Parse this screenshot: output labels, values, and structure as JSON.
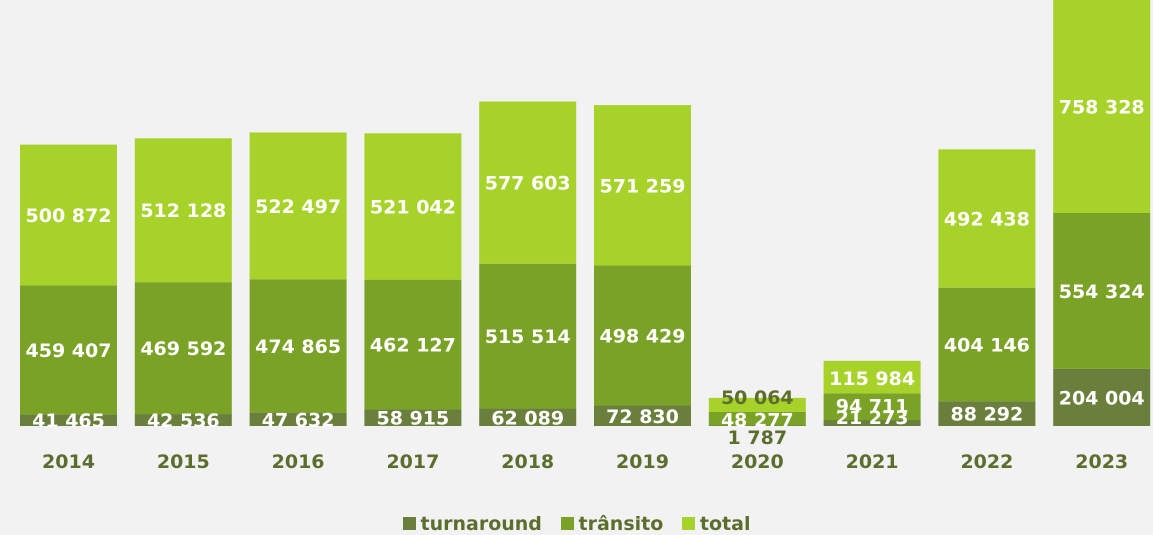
{
  "chart_data": {
    "type": "bar",
    "stacked": true,
    "categories": [
      "2014",
      "2015",
      "2016",
      "2017",
      "2018",
      "2019",
      "2020",
      "2021",
      "2022",
      "2023"
    ],
    "series": [
      {
        "name": "turnaround",
        "color": "#6a7f3c",
        "values": [
          41465,
          42536,
          47632,
          58915,
          62089,
          72830,
          1787,
          21273,
          88292,
          204004
        ],
        "labels": [
          "41 465",
          "42 536",
          "47 632",
          "58 915",
          "62 089",
          "72 830",
          "1 787",
          "21 273",
          "88 292",
          "204 004"
        ]
      },
      {
        "name": "trânsito",
        "color": "#7aa227",
        "values": [
          459407,
          469592,
          474865,
          462127,
          515514,
          498429,
          48277,
          94711,
          404146,
          554324
        ],
        "labels": [
          "459 407",
          "469 592",
          "474 865",
          "462 127",
          "515 514",
          "498 429",
          "48 277",
          "94 711",
          "404 146",
          "554 324"
        ]
      },
      {
        "name": "total",
        "color": "#a6d22a",
        "values": [
          500872,
          512128,
          522497,
          521042,
          577603,
          571259,
          50064,
          115984,
          492438,
          758328
        ],
        "labels": [
          "500 872",
          "512 128",
          "522 497",
          "521 042",
          "577 603",
          "571 259",
          "50 064",
          "115 984",
          "492 438",
          "758 328"
        ]
      }
    ],
    "legend_position": "bottom",
    "grid": false
  }
}
